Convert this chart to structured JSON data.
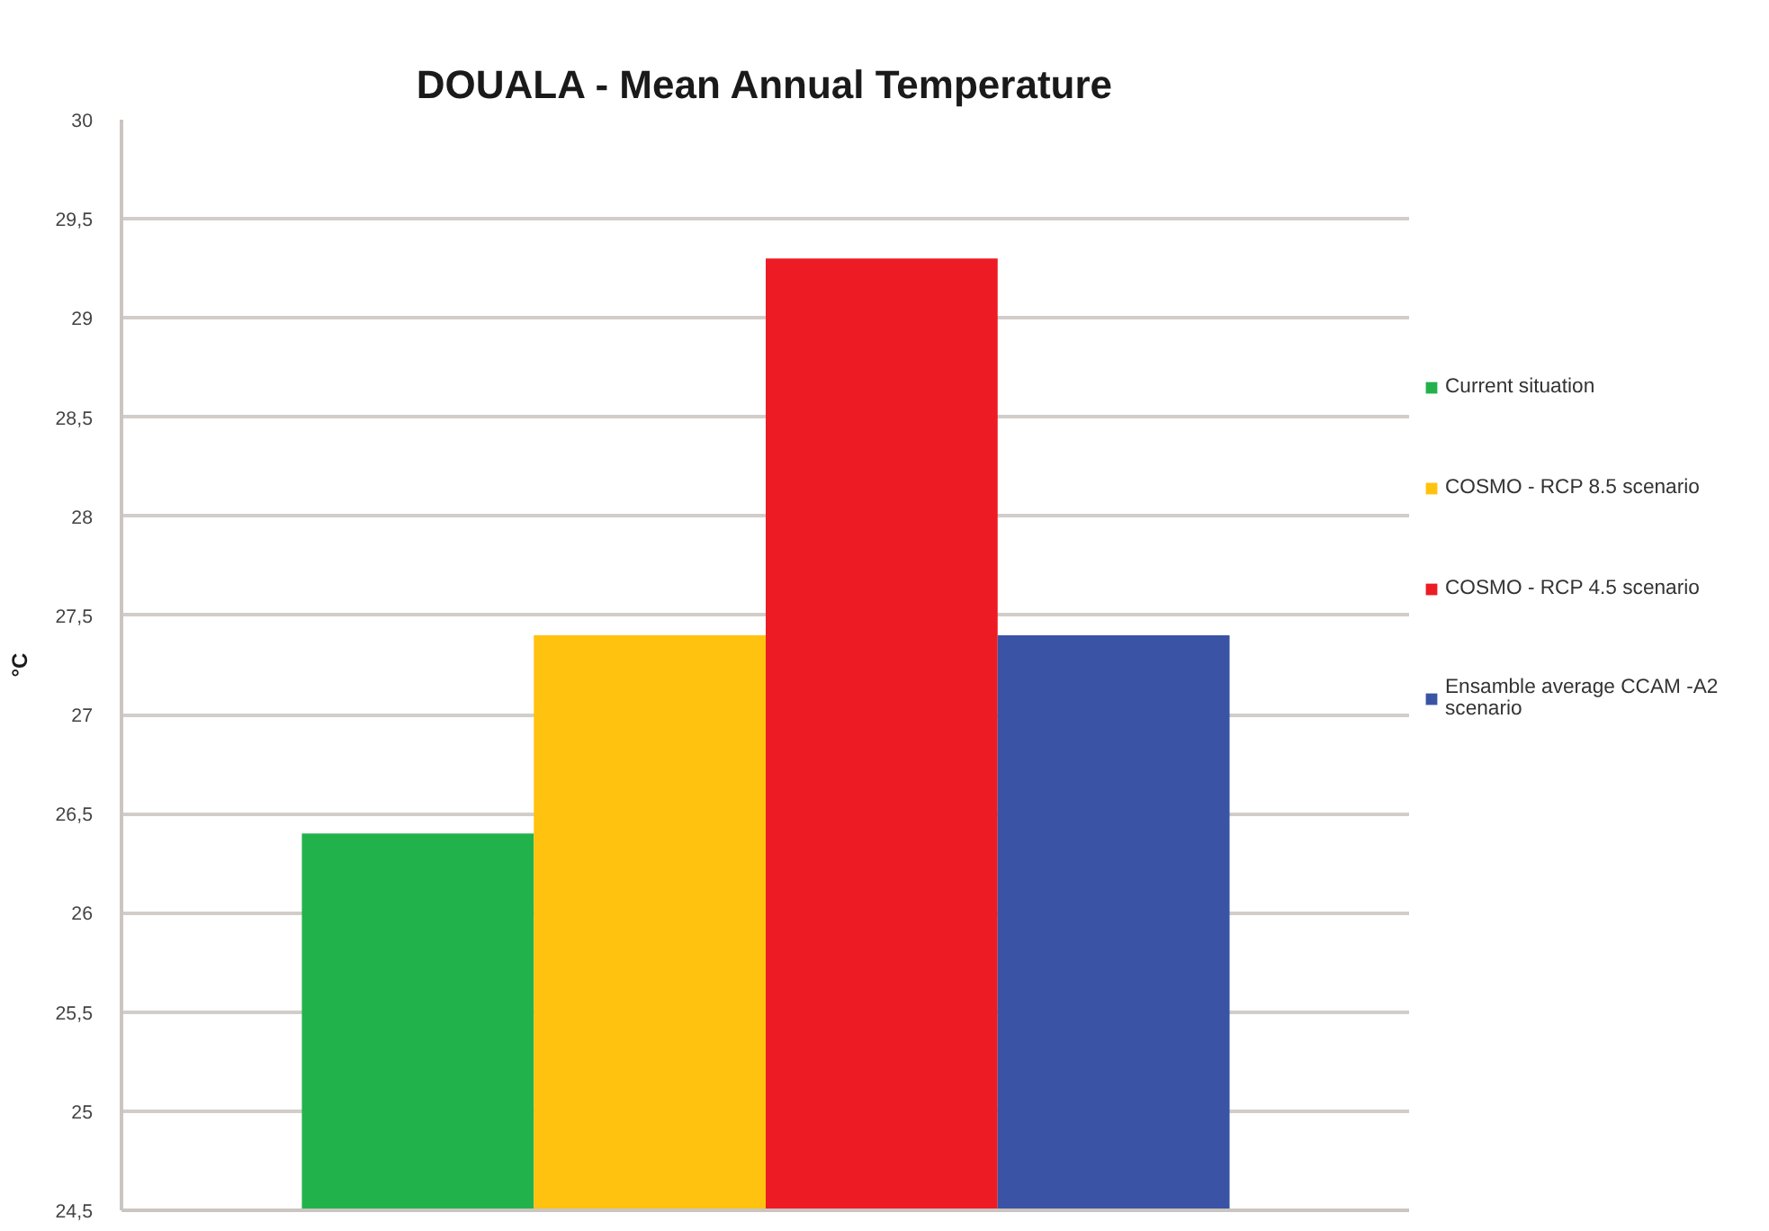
{
  "chart_data": {
    "type": "bar",
    "title": "DOUALA - Mean Annual Temperature",
    "ylabel": "°C",
    "categories": [
      null
    ],
    "series": [
      {
        "name": "Current situation",
        "color": "#22b24c",
        "values": [
          26.4
        ]
      },
      {
        "name": "COSMO - RCP 8.5 scenario",
        "color": "#ffc20e",
        "values": [
          27.4
        ]
      },
      {
        "name": "COSMO - RCP 4.5 scenario",
        "color": "#ed1c24",
        "values": [
          29.3
        ]
      },
      {
        "name": "Ensamble average CCAM -A2 scenario",
        "color": "#3a53a4",
        "values": [
          27.4
        ]
      }
    ],
    "ylim": [
      24.5,
      30
    ],
    "yticks": [
      {
        "value": 24.5,
        "label": "24,5"
      },
      25,
      {
        "value": 25.5,
        "label": "25,5"
      },
      26,
      {
        "value": 26.5,
        "label": "26,5"
      },
      27,
      {
        "value": 27.5,
        "label": "27,5"
      },
      28,
      {
        "value": 28.5,
        "label": "28,5"
      },
      29,
      {
        "value": 29.5,
        "label": "29,5"
      },
      30
    ],
    "grid": "y",
    "legend": "right",
    "tick_labels": "y"
  }
}
